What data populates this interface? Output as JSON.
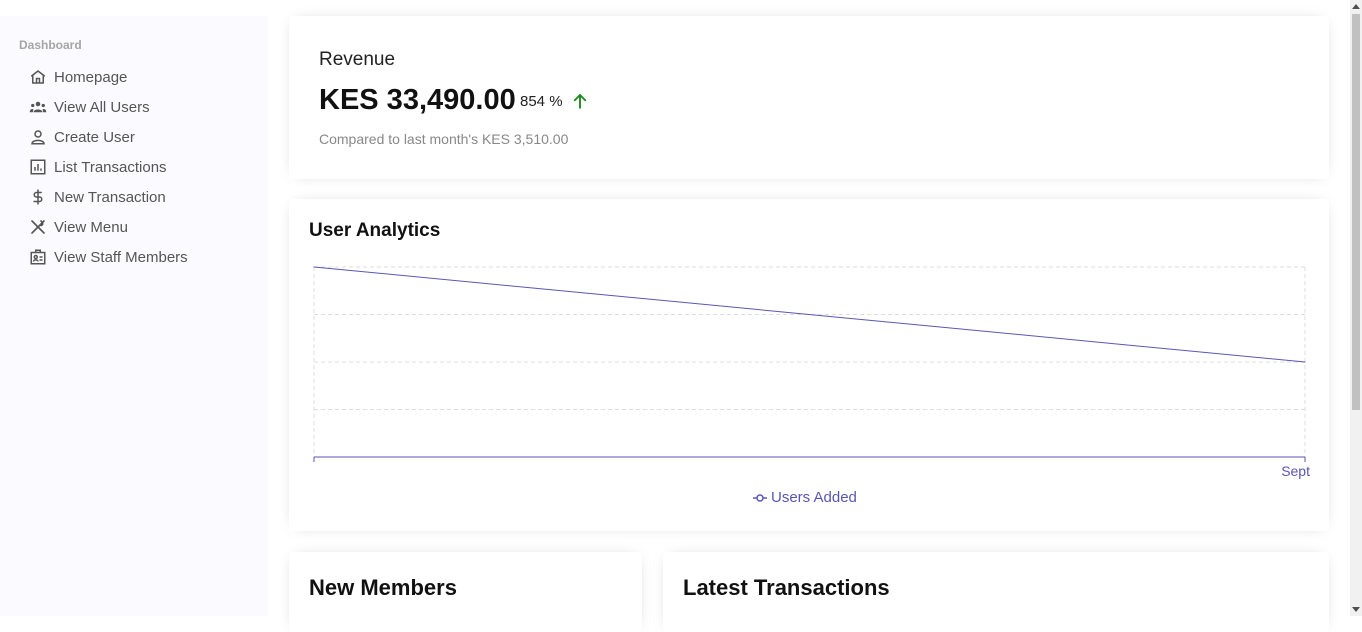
{
  "sidebar": {
    "title": "Dashboard",
    "items": [
      {
        "label": "Homepage",
        "icon": "home-icon"
      },
      {
        "label": "View All Users",
        "icon": "users-icon"
      },
      {
        "label": "Create User",
        "icon": "user-icon"
      },
      {
        "label": "List Transactions",
        "icon": "bar-chart-icon"
      },
      {
        "label": "New Transaction",
        "icon": "dollar-icon"
      },
      {
        "label": "View Menu",
        "icon": "utensils-icon"
      },
      {
        "label": "View Staff Members",
        "icon": "badge-icon"
      }
    ]
  },
  "revenue": {
    "title": "Revenue",
    "amount": "KES 33,490.00",
    "rate": "854 %",
    "rate_trend": "up",
    "compare": "Compared to last month's KES 3,510.00"
  },
  "analytics": {
    "title": "User Analytics",
    "legend": "Users Added"
  },
  "new_members": {
    "title": "New Members"
  },
  "latest_transactions": {
    "title": "Latest Transactions"
  },
  "colors": {
    "line": "#5a55b5",
    "up_arrow": "#1a8a1a"
  },
  "chart_data": {
    "type": "line",
    "categories": [
      "",
      "Sept"
    ],
    "series": [
      {
        "name": "Users Added",
        "values": [
          4,
          2
        ]
      }
    ],
    "ylim": [
      0,
      4
    ],
    "title": "User Analytics",
    "grid": true,
    "legend": "bottom-center"
  }
}
